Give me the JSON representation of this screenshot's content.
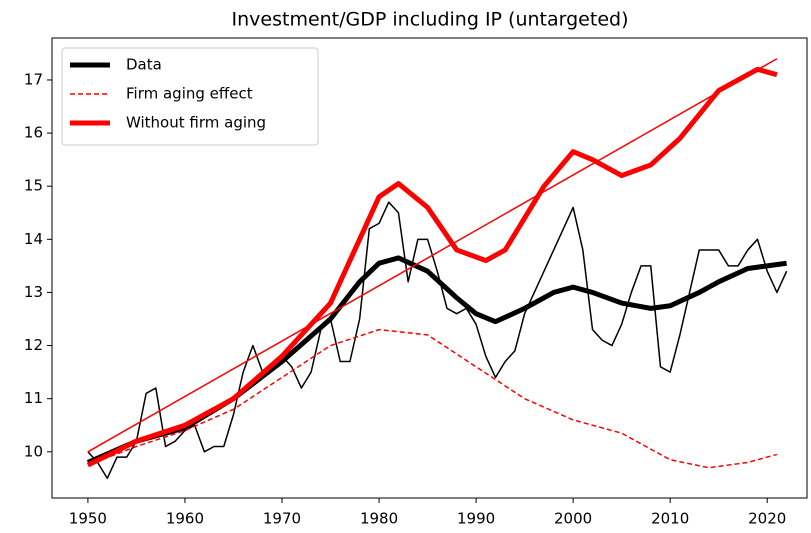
{
  "chart_data": {
    "type": "line",
    "title": "Investment/GDP including IP (untargeted)",
    "xlim": [
      1946.3,
      2024.1
    ],
    "ylim": [
      9.13,
      17.79
    ],
    "xticks": [
      1950,
      1960,
      1970,
      1980,
      1990,
      2000,
      2010,
      2020
    ],
    "yticks": [
      10,
      11,
      12,
      13,
      14,
      15,
      16,
      17
    ],
    "legend": "upper left",
    "series": [
      {
        "color": "#000000",
        "width": 1.5,
        "dash": false,
        "x": [
          1950,
          1951,
          1952,
          1953,
          1954,
          1955,
          1956,
          1957,
          1958,
          1959,
          1960,
          1961,
          1962,
          1963,
          1964,
          1965,
          1966,
          1967,
          1968,
          1969,
          1970,
          1971,
          1972,
          1973,
          1974,
          1975,
          1976,
          1977,
          1978,
          1979,
          1980,
          1981,
          1982,
          1983,
          1984,
          1985,
          1986,
          1987,
          1988,
          1989,
          1990,
          1991,
          1992,
          1993,
          1994,
          1995,
          1996,
          1997,
          1998,
          1999,
          2000,
          2001,
          2002,
          2003,
          2004,
          2005,
          2006,
          2007,
          2008,
          2009,
          2010,
          2011,
          2012,
          2013,
          2014,
          2015,
          2016,
          2017,
          2018,
          2019,
          2020,
          2021,
          2022
        ],
        "values": [
          10.0,
          9.8,
          9.5,
          9.9,
          9.9,
          10.2,
          11.1,
          11.2,
          10.1,
          10.2,
          10.4,
          10.5,
          10.0,
          10.1,
          10.1,
          10.7,
          11.5,
          12.0,
          11.5,
          11.6,
          11.8,
          11.6,
          11.2,
          11.5,
          12.3,
          12.5,
          11.7,
          11.7,
          12.5,
          14.2,
          14.3,
          14.7,
          14.5,
          13.2,
          14.0,
          14.0,
          13.4,
          12.7,
          12.6,
          12.7,
          12.4,
          11.8,
          11.4,
          11.7,
          11.9,
          12.6,
          13.0,
          13.4,
          13.8,
          14.2,
          14.6,
          13.8,
          12.3,
          12.1,
          12.0,
          12.4,
          13.0,
          13.5,
          13.5,
          11.6,
          11.5,
          12.2,
          13.0,
          13.8,
          13.8,
          13.8,
          13.5,
          13.5,
          13.8,
          14.0,
          13.4,
          13.0,
          13.4
        ]
      },
      {
        "name": "Data",
        "color": "#000000",
        "width": 5,
        "dash": false,
        "x": [
          1950,
          1955,
          1960,
          1965,
          1970,
          1975,
          1978,
          1980,
          1982,
          1985,
          1988,
          1990,
          1992,
          1995,
          1998,
          2000,
          2002,
          2005,
          2008,
          2010,
          2013,
          2015,
          2018,
          2020,
          2022
        ],
        "values": [
          9.8,
          10.2,
          10.45,
          11.0,
          11.7,
          12.5,
          13.2,
          13.55,
          13.65,
          13.4,
          12.9,
          12.6,
          12.45,
          12.7,
          13.0,
          13.1,
          13.0,
          12.8,
          12.7,
          12.75,
          13.0,
          13.2,
          13.45,
          13.5,
          13.55
        ]
      },
      {
        "name": "Firm aging effect",
        "color": "#ff0000",
        "width": 1.5,
        "dash": true,
        "x": [
          1950,
          1955,
          1960,
          1965,
          1970,
          1975,
          1980,
          1985,
          1990,
          1995,
          2000,
          2005,
          2010,
          2014,
          2018,
          2021
        ],
        "values": [
          9.75,
          10.1,
          10.4,
          10.8,
          11.4,
          12.0,
          12.3,
          12.2,
          11.6,
          11.0,
          10.6,
          10.35,
          9.85,
          9.7,
          9.8,
          9.95
        ]
      },
      {
        "name": "Without firm aging",
        "color": "#ff0000",
        "width": 5,
        "dash": false,
        "x": [
          1950,
          1955,
          1960,
          1965,
          1970,
          1975,
          1978,
          1980,
          1982,
          1985,
          1988,
          1991,
          1993,
          1997,
          2000,
          2002,
          2005,
          2008,
          2011,
          2015,
          2019,
          2021
        ],
        "values": [
          9.75,
          10.2,
          10.5,
          11.0,
          11.8,
          12.8,
          14.0,
          14.8,
          15.05,
          14.6,
          13.8,
          13.6,
          13.8,
          15.0,
          15.65,
          15.5,
          15.2,
          15.4,
          15.9,
          16.8,
          17.2,
          17.1
        ]
      },
      {
        "color": "#ff0000",
        "width": 1.5,
        "dash": false,
        "x": [
          1950,
          2021
        ],
        "values": [
          10.0,
          17.4
        ]
      }
    ]
  }
}
